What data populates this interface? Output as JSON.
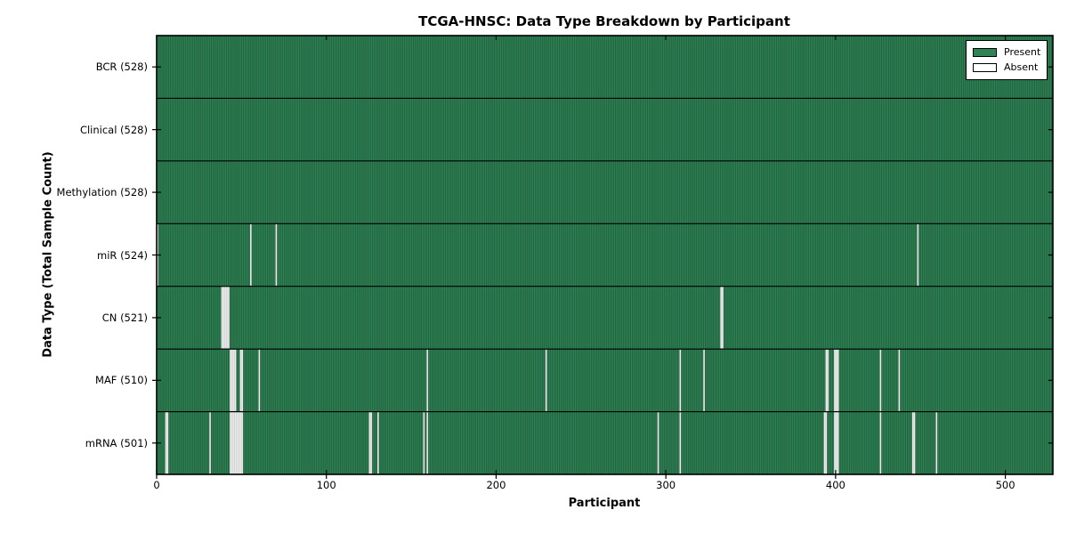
{
  "chart_data": {
    "type": "heatmap",
    "title": "TCGA-HNSC: Data Type Breakdown by Participant",
    "xlabel": "Participant",
    "ylabel": "Data Type (Total Sample Count)",
    "n_participants": 528,
    "x_ticks": [
      0,
      100,
      200,
      300,
      400,
      500
    ],
    "xlim": [
      0,
      528
    ],
    "grid": false,
    "legend_position": "upper right",
    "legend": {
      "present_label": "Present",
      "absent_label": "Absent"
    },
    "colors": {
      "present": "#2e8455",
      "absent": "#ededed",
      "edge": "#000000",
      "background": "#ffffff"
    },
    "rows": [
      {
        "label": "BCR (528)",
        "name": "bcr",
        "present_count": 528,
        "absent_indices": []
      },
      {
        "label": "Clinical (528)",
        "name": "clinical",
        "present_count": 528,
        "absent_indices": []
      },
      {
        "label": "Methylation (528)",
        "name": "methylation",
        "present_count": 528,
        "absent_indices": []
      },
      {
        "label": "miR (524)",
        "name": "mir",
        "present_count": 524,
        "absent_indices": [
          0,
          55,
          70,
          448
        ]
      },
      {
        "label": "CN (521)",
        "name": "cn",
        "present_count": 521,
        "absent_indices": [
          38,
          39,
          40,
          41,
          42,
          332,
          333
        ]
      },
      {
        "label": "MAF (510)",
        "name": "maf",
        "present_count": 510,
        "absent_indices": [
          43,
          44,
          45,
          46,
          49,
          50,
          60,
          159,
          229,
          308,
          322,
          394,
          395,
          399,
          400,
          401,
          426,
          437
        ]
      },
      {
        "label": "mRNA (501)",
        "name": "mrna",
        "present_count": 501,
        "absent_indices": [
          5,
          6,
          31,
          43,
          44,
          45,
          46,
          47,
          48,
          49,
          50,
          125,
          126,
          130,
          157,
          159,
          295,
          308,
          393,
          394,
          399,
          400,
          401,
          426,
          445,
          446,
          459
        ]
      }
    ]
  }
}
